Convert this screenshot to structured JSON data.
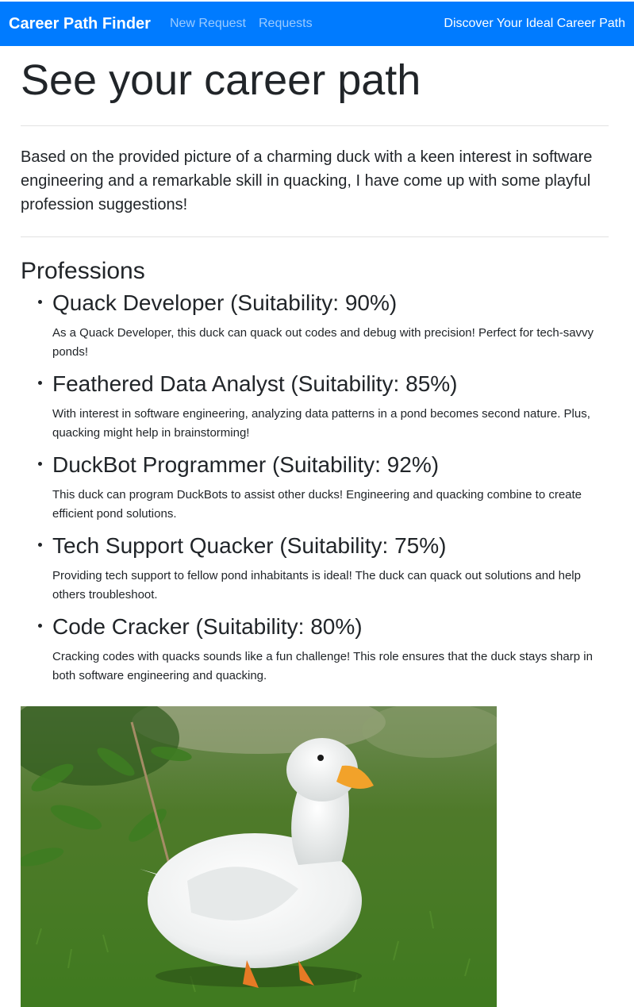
{
  "navbar": {
    "brand": "Career Path Finder",
    "links": [
      "New Request",
      "Requests"
    ],
    "tagline": "Discover Your Ideal Career Path"
  },
  "page": {
    "title": "See your career path",
    "intro": "Based on the provided picture of a charming duck with a keen interest in software engineering and a remarkable skill in quacking, I have come up with some playful profession suggestions!",
    "professions_heading": "Professions"
  },
  "professions": [
    {
      "title": "Quack Developer (Suitability: 90%)",
      "description": "As a Quack Developer, this duck can quack out codes and debug with precision! Perfect for tech-savvy ponds!"
    },
    {
      "title": "Feathered Data Analyst (Suitability: 85%)",
      "description": "With interest in software engineering, analyzing data patterns in a pond becomes second nature. Plus, quacking might help in brainstorming!"
    },
    {
      "title": "DuckBot Programmer (Suitability: 92%)",
      "description": "This duck can program DuckBots to assist other ducks! Engineering and quacking combine to create efficient pond solutions."
    },
    {
      "title": "Tech Support Quacker (Suitability: 75%)",
      "description": "Providing tech support to fellow pond inhabitants is ideal! The duck can quack out solutions and help others troubleshoot."
    },
    {
      "title": "Code Cracker (Suitability: 80%)",
      "description": "Cracking codes with quacks sounds like a fun challenge! This role ensures that the duck stays sharp in both software engineering and quacking."
    }
  ],
  "colors": {
    "navbar": "#007bff",
    "text": "#212529"
  }
}
